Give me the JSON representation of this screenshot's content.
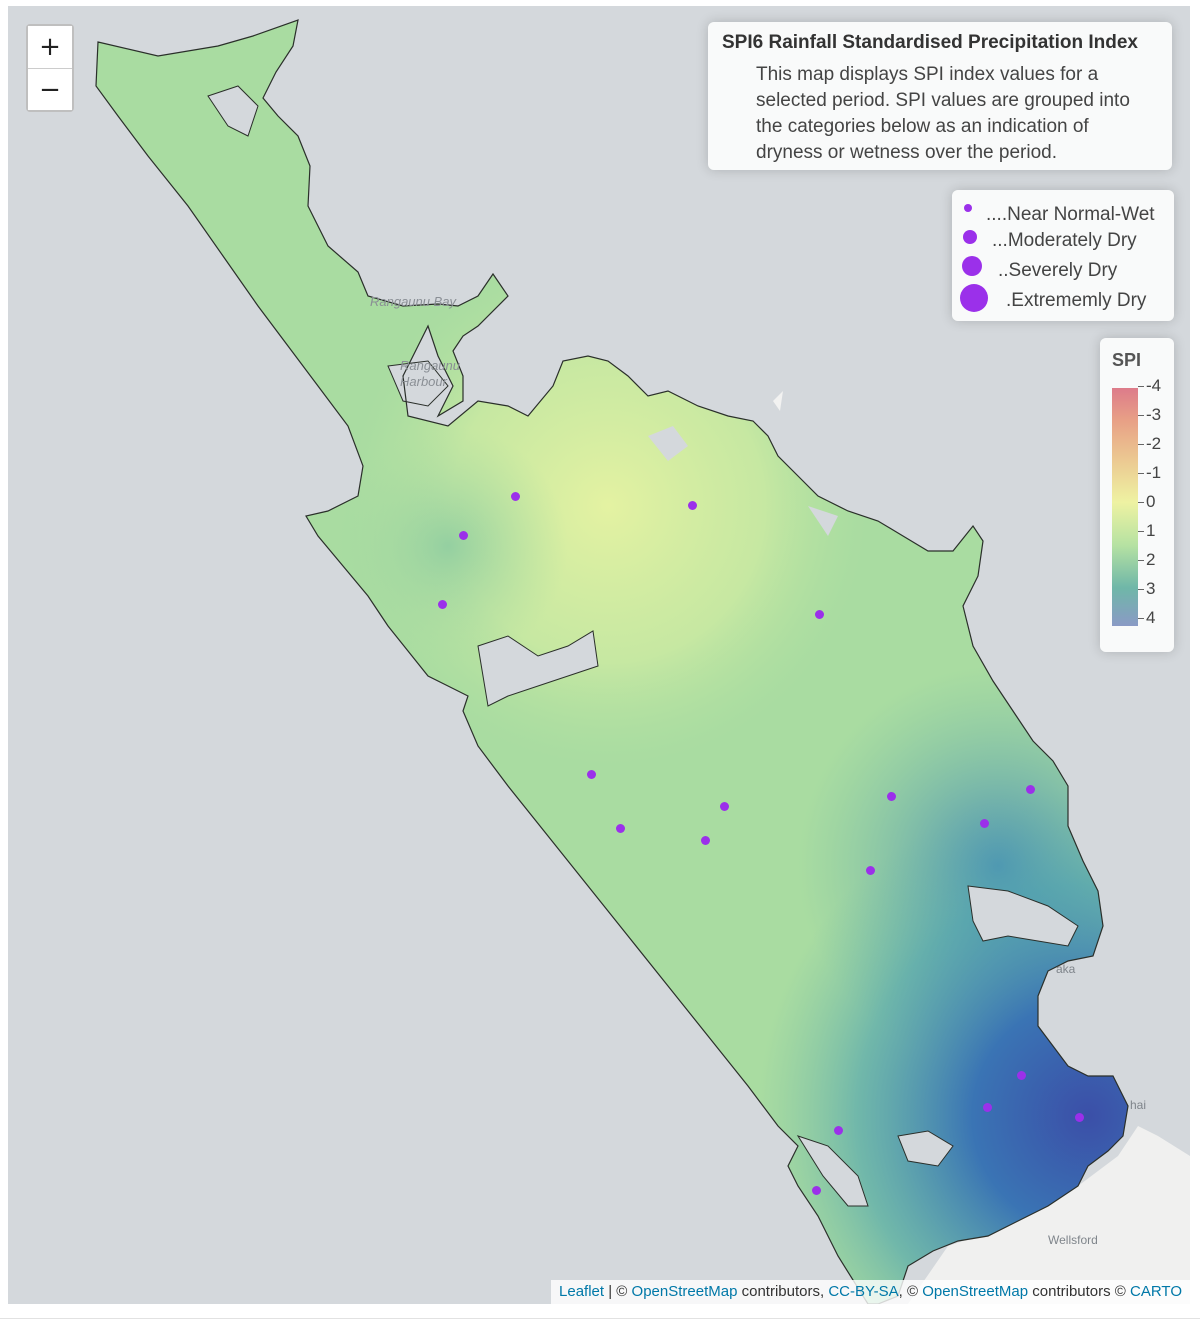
{
  "legend": {
    "title": "SPI6 Rainfall Standardised Precipitation Index",
    "description": "This map displays SPI index values for a selected period. SPI values are grouped into the categories below as an indication of dryness or wetness over the period.",
    "categories": [
      {
        "label": "....Near Normal-Wet",
        "color": "#9b30ea"
      },
      {
        "label": "...Moderately Dry",
        "color": "#9b30ea"
      },
      {
        "label": "..Severely Dry",
        "color": "#9b30ea"
      },
      {
        "label": ".Extrememly Dry",
        "color": "#9b30ea"
      }
    ]
  },
  "colorbar": {
    "title": "SPI",
    "ticks": [
      "-4",
      "-3",
      "-2",
      "-1",
      "0",
      "1",
      "2",
      "3",
      "4"
    ],
    "colors": [
      "#dd7b8a",
      "#e8a186",
      "#eccd93",
      "#eef2a2",
      "#b6e2a2",
      "#6fb7a8",
      "#8a9ac5"
    ]
  },
  "zoom": {
    "in_label": "+",
    "out_label": "−"
  },
  "places": {
    "bay": "Rangaunu Bay",
    "harbour_1": "Rangaunu",
    "harbour_2": "Harbour",
    "wellsford": "Wellsford",
    "town_1": "aka",
    "town_2": "hai"
  },
  "attribution": {
    "leaflet": "Leaflet",
    "sep1": " | © ",
    "osm1": "OpenStreetMap",
    "contrib1": " contributors, ",
    "license": "CC-BY-SA",
    "sep2": ", © ",
    "osm2": "OpenStreetMap",
    "contrib2": " contributors © ",
    "carto": "CARTO"
  },
  "colors": {
    "station": "#9b30ea",
    "water": "#d4d8dc",
    "land_outside": "#f0f0ef"
  }
}
